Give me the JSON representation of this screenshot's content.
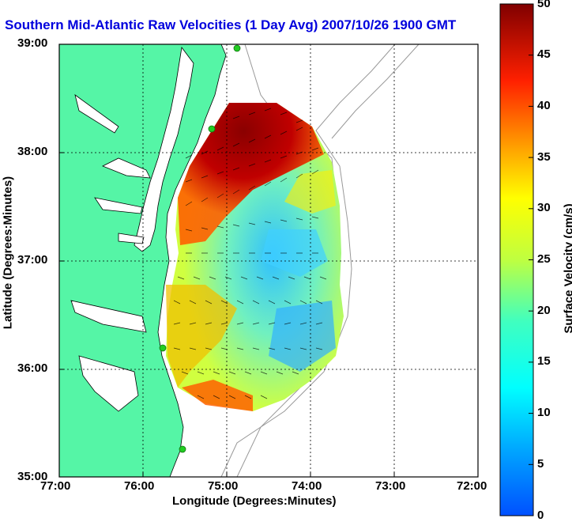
{
  "title": "Southern Mid-Atlantic Raw Velocities (1 Day Avg) 2007/10/26 1900 GMT",
  "axes": {
    "xlabel": "Longitude (Degrees:Minutes)",
    "ylabel": "Latitude (Degrees:Minutes)",
    "xticks": [
      "77:00",
      "76:00",
      "75:00",
      "74:00",
      "73:00",
      "72:00"
    ],
    "yticks": [
      "39:00",
      "38:00",
      "37:00",
      "36:00",
      "35:00"
    ]
  },
  "colorbar": {
    "label": "Surface Velocity (cm/s)",
    "ticks": [
      "0",
      "5",
      "10",
      "15",
      "20",
      "25",
      "30",
      "35",
      "40",
      "45",
      "50"
    ],
    "range": [
      0,
      50
    ],
    "colormap": "jet"
  },
  "map": {
    "land_color": "#55f5a6",
    "water_color": "#ffffff",
    "grid": "dotted",
    "xlim": [
      -77,
      -72
    ],
    "ylim": [
      35,
      39
    ],
    "stations_color": "#22cc22"
  }
}
